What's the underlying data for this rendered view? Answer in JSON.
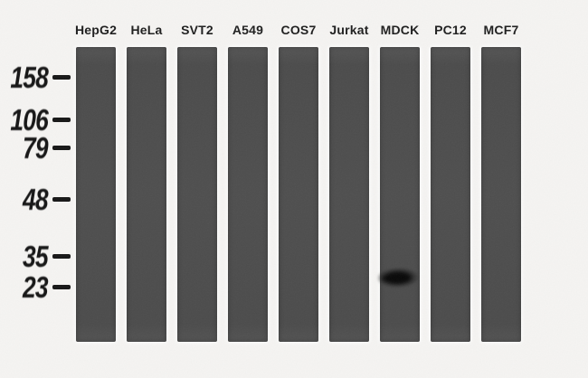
{
  "blot": {
    "lanes": [
      {
        "label": "HepG2",
        "band": false
      },
      {
        "label": "HeLa",
        "band": false
      },
      {
        "label": "SVT2",
        "band": false
      },
      {
        "label": "A549",
        "band": false
      },
      {
        "label": "COS7",
        "band": false
      },
      {
        "label": "Jurkat",
        "band": false
      },
      {
        "label": "MDCK",
        "band": true
      },
      {
        "label": "PC12",
        "band": false
      },
      {
        "label": "MCF7",
        "band": false
      }
    ],
    "markers": [
      "158",
      "106",
      "79",
      "48",
      "35",
      "23"
    ]
  }
}
